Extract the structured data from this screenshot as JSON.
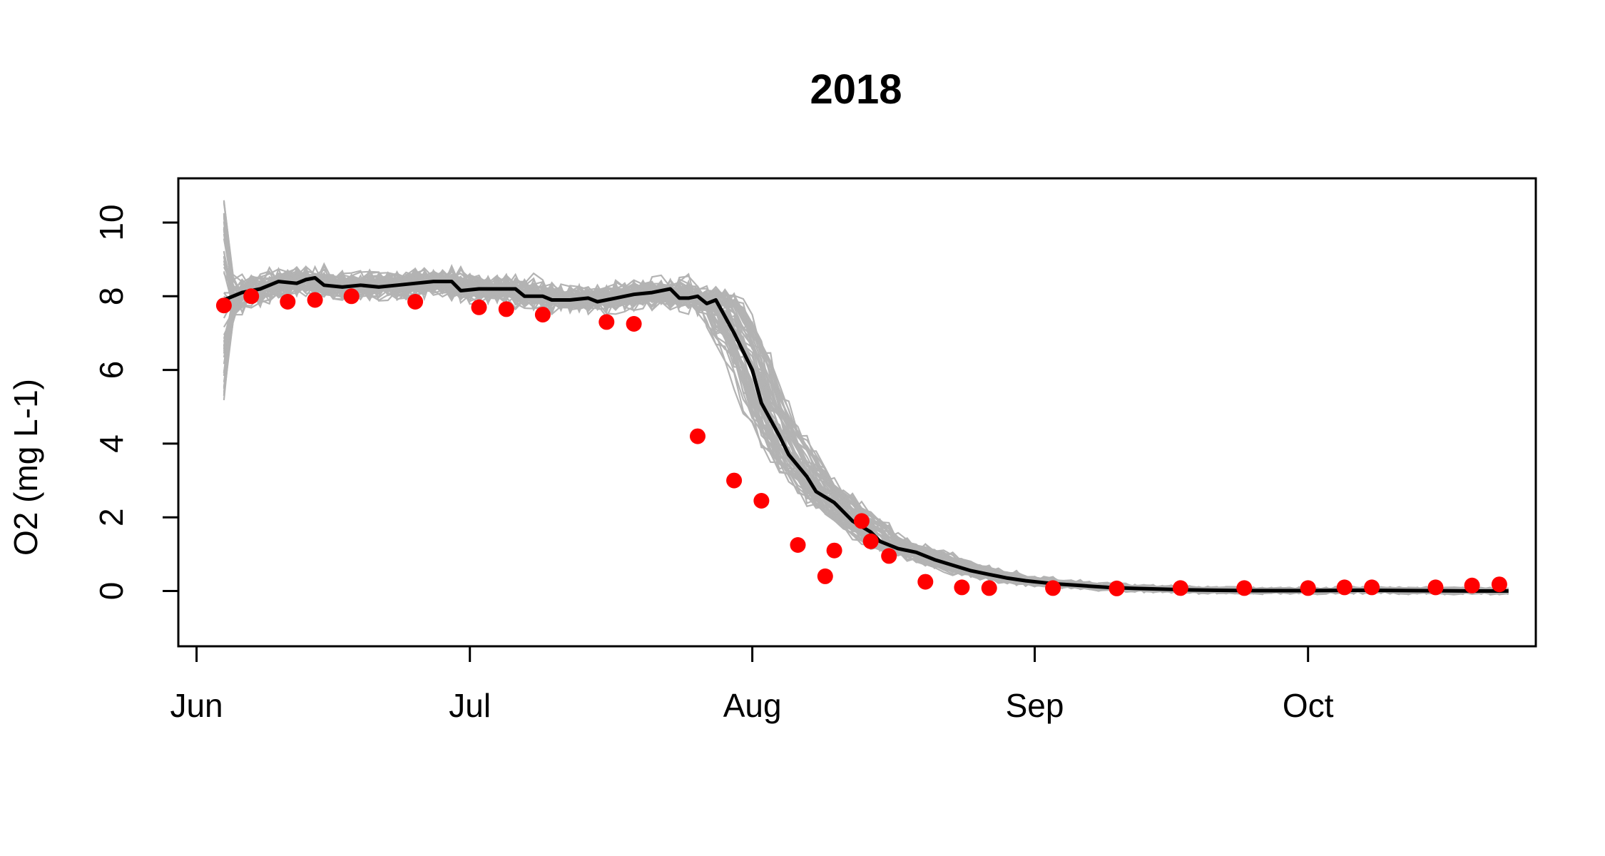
{
  "chart_data": {
    "type": "line",
    "title": "2018",
    "xlabel": "",
    "ylabel": "O2 (mg L-1)",
    "x_ticks": [
      {
        "date": "2018-06-01",
        "label": "Jun"
      },
      {
        "date": "2018-07-01",
        "label": "Jul"
      },
      {
        "date": "2018-08-01",
        "label": "Aug"
      },
      {
        "date": "2018-09-01",
        "label": "Sep"
      },
      {
        "date": "2018-10-01",
        "label": "Oct"
      }
    ],
    "y_ticks": [
      0,
      2,
      4,
      6,
      8,
      10
    ],
    "xlim": [
      "2018-05-30",
      "2018-10-26"
    ],
    "ylim": [
      -1.5,
      11.2
    ],
    "grid": false,
    "legend": "none",
    "colors": {
      "ensemble": "#b3b3b3",
      "median": "#000000",
      "observed": "#ff0000"
    },
    "series": [
      {
        "name": "",
        "style": "median-line",
        "points": [
          {
            "x": "2018-06-04",
            "y": 7.9
          },
          {
            "x": "2018-06-06",
            "y": 8.1
          },
          {
            "x": "2018-06-08",
            "y": 8.2
          },
          {
            "x": "2018-06-10",
            "y": 8.4
          },
          {
            "x": "2018-06-12",
            "y": 8.35
          },
          {
            "x": "2018-06-13",
            "y": 8.45
          },
          {
            "x": "2018-06-14",
            "y": 8.5
          },
          {
            "x": "2018-06-15",
            "y": 8.3
          },
          {
            "x": "2018-06-17",
            "y": 8.25
          },
          {
            "x": "2018-06-19",
            "y": 8.3
          },
          {
            "x": "2018-06-21",
            "y": 8.25
          },
          {
            "x": "2018-06-23",
            "y": 8.3
          },
          {
            "x": "2018-06-25",
            "y": 8.35
          },
          {
            "x": "2018-06-27",
            "y": 8.4
          },
          {
            "x": "2018-06-29",
            "y": 8.4
          },
          {
            "x": "2018-06-30",
            "y": 8.15
          },
          {
            "x": "2018-07-02",
            "y": 8.2
          },
          {
            "x": "2018-07-04",
            "y": 8.2
          },
          {
            "x": "2018-07-06",
            "y": 8.2
          },
          {
            "x": "2018-07-07",
            "y": 8.0
          },
          {
            "x": "2018-07-09",
            "y": 8.0
          },
          {
            "x": "2018-07-10",
            "y": 7.9
          },
          {
            "x": "2018-07-12",
            "y": 7.9
          },
          {
            "x": "2018-07-14",
            "y": 7.95
          },
          {
            "x": "2018-07-15",
            "y": 7.85
          },
          {
            "x": "2018-07-17",
            "y": 7.95
          },
          {
            "x": "2018-07-19",
            "y": 8.05
          },
          {
            "x": "2018-07-21",
            "y": 8.1
          },
          {
            "x": "2018-07-23",
            "y": 8.2
          },
          {
            "x": "2018-07-24",
            "y": 7.95
          },
          {
            "x": "2018-07-25",
            "y": 7.95
          },
          {
            "x": "2018-07-26",
            "y": 8.0
          },
          {
            "x": "2018-07-27",
            "y": 7.8
          },
          {
            "x": "2018-07-28",
            "y": 7.9
          },
          {
            "x": "2018-07-30",
            "y": 7.0
          },
          {
            "x": "2018-08-01",
            "y": 6.0
          },
          {
            "x": "2018-08-02",
            "y": 5.1
          },
          {
            "x": "2018-08-04",
            "y": 4.2
          },
          {
            "x": "2018-08-05",
            "y": 3.7
          },
          {
            "x": "2018-08-07",
            "y": 3.1
          },
          {
            "x": "2018-08-08",
            "y": 2.7
          },
          {
            "x": "2018-08-10",
            "y": 2.4
          },
          {
            "x": "2018-08-12",
            "y": 1.9
          },
          {
            "x": "2018-08-14",
            "y": 1.6
          },
          {
            "x": "2018-08-15",
            "y": 1.35
          },
          {
            "x": "2018-08-17",
            "y": 1.15
          },
          {
            "x": "2018-08-19",
            "y": 1.05
          },
          {
            "x": "2018-08-21",
            "y": 0.85
          },
          {
            "x": "2018-08-23",
            "y": 0.7
          },
          {
            "x": "2018-08-25",
            "y": 0.55
          },
          {
            "x": "2018-08-27",
            "y": 0.45
          },
          {
            "x": "2018-08-29",
            "y": 0.35
          },
          {
            "x": "2018-08-31",
            "y": 0.28
          },
          {
            "x": "2018-09-03",
            "y": 0.2
          },
          {
            "x": "2018-09-06",
            "y": 0.15
          },
          {
            "x": "2018-09-09",
            "y": 0.1
          },
          {
            "x": "2018-09-12",
            "y": 0.07
          },
          {
            "x": "2018-09-15",
            "y": 0.05
          },
          {
            "x": "2018-09-18",
            "y": 0.03
          },
          {
            "x": "2018-09-21",
            "y": 0.02
          },
          {
            "x": "2018-09-25",
            "y": 0.01
          },
          {
            "x": "2018-10-01",
            "y": 0.01
          },
          {
            "x": "2018-10-07",
            "y": 0.02
          },
          {
            "x": "2018-10-13",
            "y": 0.01
          },
          {
            "x": "2018-10-19",
            "y": 0.0
          },
          {
            "x": "2018-10-23",
            "y": 0.0
          }
        ]
      },
      {
        "name": "",
        "style": "observed-points",
        "points": [
          {
            "x": "2018-06-04",
            "y": 7.75
          },
          {
            "x": "2018-06-07",
            "y": 8.0
          },
          {
            "x": "2018-06-11",
            "y": 7.85
          },
          {
            "x": "2018-06-14",
            "y": 7.9
          },
          {
            "x": "2018-06-18",
            "y": 8.0
          },
          {
            "x": "2018-06-25",
            "y": 7.85
          },
          {
            "x": "2018-07-02",
            "y": 7.7
          },
          {
            "x": "2018-07-05",
            "y": 7.65
          },
          {
            "x": "2018-07-09",
            "y": 7.5
          },
          {
            "x": "2018-07-16",
            "y": 7.3
          },
          {
            "x": "2018-07-19",
            "y": 7.25
          },
          {
            "x": "2018-07-26",
            "y": 4.2
          },
          {
            "x": "2018-07-30",
            "y": 3.0
          },
          {
            "x": "2018-08-02",
            "y": 2.45
          },
          {
            "x": "2018-08-06",
            "y": 1.25
          },
          {
            "x": "2018-08-09",
            "y": 0.4
          },
          {
            "x": "2018-08-10",
            "y": 1.1
          },
          {
            "x": "2018-08-13",
            "y": 1.9
          },
          {
            "x": "2018-08-14",
            "y": 1.35
          },
          {
            "x": "2018-08-16",
            "y": 0.95
          },
          {
            "x": "2018-08-20",
            "y": 0.25
          },
          {
            "x": "2018-08-24",
            "y": 0.1
          },
          {
            "x": "2018-08-27",
            "y": 0.08
          },
          {
            "x": "2018-09-03",
            "y": 0.08
          },
          {
            "x": "2018-09-10",
            "y": 0.07
          },
          {
            "x": "2018-09-17",
            "y": 0.08
          },
          {
            "x": "2018-09-24",
            "y": 0.08
          },
          {
            "x": "2018-10-01",
            "y": 0.08
          },
          {
            "x": "2018-10-05",
            "y": 0.1
          },
          {
            "x": "2018-10-08",
            "y": 0.1
          },
          {
            "x": "2018-10-15",
            "y": 0.1
          },
          {
            "x": "2018-10-19",
            "y": 0.15
          },
          {
            "x": "2018-10-22",
            "y": 0.18
          }
        ]
      }
    ]
  }
}
